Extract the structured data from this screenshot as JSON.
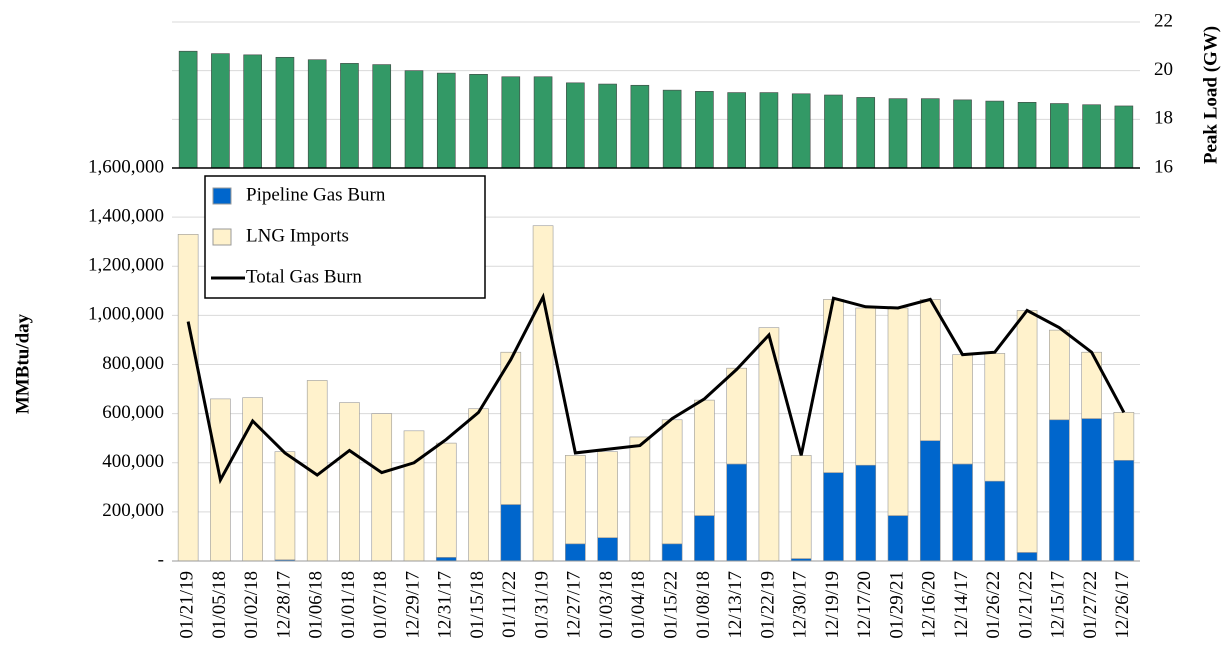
{
  "chart_data": [
    {
      "type": "bar",
      "ylabel": "Peak Load (GW)",
      "color": "#339966",
      "values": [
        20.8,
        20.7,
        20.65,
        20.55,
        20.45,
        20.3,
        20.25,
        20.0,
        19.9,
        19.85,
        19.75,
        19.75,
        19.5,
        19.45,
        19.4,
        19.2,
        19.15,
        19.1,
        19.1,
        19.05,
        19.0,
        18.9,
        18.85,
        18.85,
        18.8,
        18.75,
        18.7,
        18.65,
        18.6,
        18.55
      ],
      "ylim": [
        16,
        22
      ],
      "yticks": [
        16,
        18,
        20,
        22
      ],
      "grid": true
    },
    {
      "type": "stacked-bar-line",
      "ylabel": "MMBtu/day",
      "categories": [
        "01/21/19",
        "01/05/18",
        "01/02/18",
        "12/28/17",
        "01/06/18",
        "01/01/18",
        "01/07/18",
        "12/29/17",
        "12/31/17",
        "01/15/18",
        "01/11/22",
        "01/31/19",
        "12/27/17",
        "01/03/18",
        "01/04/18",
        "01/15/22",
        "01/08/18",
        "12/13/17",
        "01/22/19",
        "12/30/17",
        "12/19/19",
        "12/17/20",
        "01/29/21",
        "12/16/20",
        "12/14/17",
        "01/26/22",
        "01/21/22",
        "12/15/17",
        "01/27/22",
        "12/26/17"
      ],
      "series": [
        {
          "name": "Pipeline Gas Burn",
          "color": "#0066cc",
          "kind": "bar",
          "values": [
            0,
            0,
            0,
            5000,
            0,
            0,
            0,
            0,
            15000,
            0,
            230000,
            0,
            70000,
            95000,
            0,
            70000,
            185000,
            395000,
            0,
            10000,
            360000,
            390000,
            185000,
            490000,
            395000,
            325000,
            35000,
            575000,
            580000,
            410000
          ]
        },
        {
          "name": "LNG Imports",
          "color": "#fff2cc",
          "kind": "bar",
          "values": [
            1330000,
            660000,
            665000,
            440000,
            735000,
            645000,
            600000,
            530000,
            465000,
            620000,
            620000,
            1365000,
            360000,
            350000,
            505000,
            505000,
            470000,
            390000,
            950000,
            420000,
            705000,
            640000,
            845000,
            575000,
            445000,
            520000,
            985000,
            365000,
            270000,
            195000
          ]
        },
        {
          "name": "Total Gas Burn",
          "color": "#000000",
          "kind": "line",
          "values": [
            975000,
            330000,
            570000,
            440000,
            350000,
            450000,
            360000,
            400000,
            495000,
            605000,
            820000,
            1075000,
            440000,
            455000,
            470000,
            580000,
            660000,
            780000,
            920000,
            430000,
            1070000,
            1035000,
            1030000,
            1065000,
            840000,
            850000,
            1020000,
            950000,
            850000,
            605000
          ]
        }
      ],
      "ylim": [
        0,
        1600000
      ],
      "yticks": [
        {
          "value": 0,
          "label": "-"
        },
        {
          "value": 200000,
          "label": "200,000"
        },
        {
          "value": 400000,
          "label": "400,000"
        },
        {
          "value": 600000,
          "label": "600,000"
        },
        {
          "value": 800000,
          "label": "800,000"
        },
        {
          "value": 1000000,
          "label": "1,000,000"
        },
        {
          "value": 1200000,
          "label": "1,200,000"
        },
        {
          "value": 1400000,
          "label": "1,400,000"
        },
        {
          "value": 1600000,
          "label": "1,600,000"
        }
      ],
      "grid": true,
      "legend": "top-left"
    }
  ]
}
